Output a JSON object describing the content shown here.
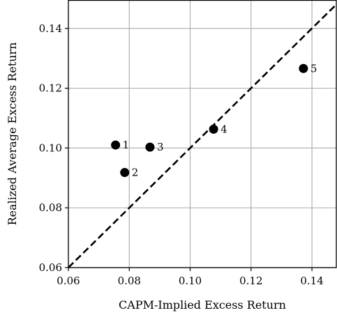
{
  "chart_data": {
    "type": "scatter",
    "title": "",
    "xlabel": "CAPM-Implied Excess Return",
    "ylabel": "Realized Average Excess Return",
    "xlim": [
      0.06,
      0.148
    ],
    "ylim": [
      0.06,
      0.1495
    ],
    "xticks": [
      0.06,
      0.08,
      0.1,
      0.12,
      0.14
    ],
    "yticks": [
      0.06,
      0.08,
      0.1,
      0.12,
      0.14
    ],
    "xtick_labels": [
      "0.06",
      "0.08",
      "0.10",
      "0.12",
      "0.14"
    ],
    "ytick_labels": [
      "0.06",
      "0.08",
      "0.10",
      "0.12",
      "0.14"
    ],
    "grid": true,
    "reference_line": {
      "style": "dashed",
      "slope": 1,
      "intercept": 0
    },
    "points": [
      {
        "label": "1",
        "x": 0.0755,
        "y": 0.101
      },
      {
        "label": "2",
        "x": 0.0785,
        "y": 0.0918
      },
      {
        "label": "3",
        "x": 0.0868,
        "y": 0.1003
      },
      {
        "label": "4",
        "x": 0.1077,
        "y": 0.1063
      },
      {
        "label": "5",
        "x": 0.1372,
        "y": 0.1266
      }
    ],
    "colors": {
      "points": "#000000",
      "grid": "#b0b0b0",
      "line": "#000000"
    }
  }
}
